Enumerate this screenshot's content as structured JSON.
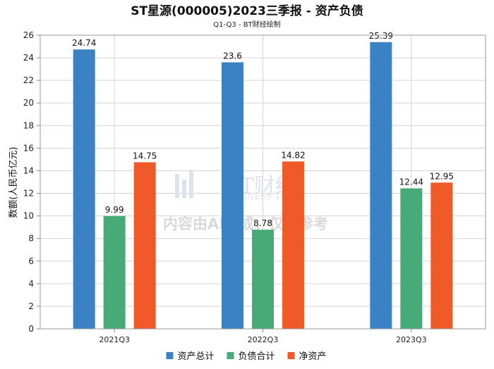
{
  "chart_data": {
    "type": "bar",
    "title": "ST星源(000005)2023三季报 - 资产负债",
    "subtitle": "Q1-Q3 - BT财经绘制",
    "xlabel": "",
    "ylabel": "数额(人民币亿元)",
    "ylim": [
      0,
      26
    ],
    "yticks": [
      0,
      2,
      4,
      6,
      8,
      10,
      12,
      14,
      16,
      18,
      20,
      22,
      24,
      26
    ],
    "grid": true,
    "legend_position": "bottom",
    "categories": [
      "2021Q3",
      "2022Q3",
      "2023Q3"
    ],
    "series": [
      {
        "name": "资产总计",
        "color": "#3a82c4",
        "values": [
          24.74,
          23.6,
          25.39
        ]
      },
      {
        "name": "负债合计",
        "color": "#47ab77",
        "values": [
          9.99,
          8.78,
          12.44
        ]
      },
      {
        "name": "净资产",
        "color": "#f05a28",
        "values": [
          14.75,
          14.82,
          12.95
        ]
      }
    ],
    "watermark": "内容由AI生成，仅供参考",
    "watermark_logo": "BT财经",
    "watermark_logo_sub": "BUSINESS TIMES"
  }
}
